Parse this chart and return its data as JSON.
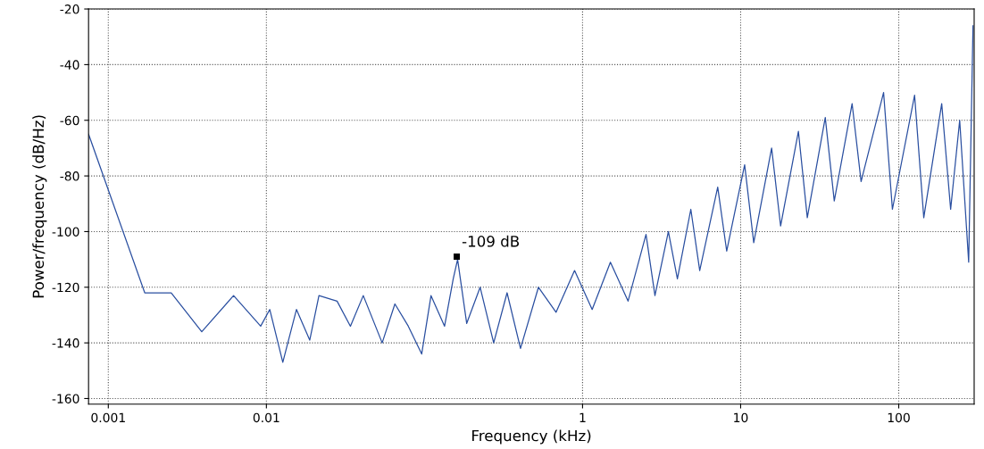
{
  "chart_data": {
    "type": "line",
    "xlabel": "Frequency (kHz)",
    "ylabel": "Power/frequency (dB/Hz)",
    "log": "x",
    "grid": true,
    "legend": false,
    "marker": "none",
    "line_style": "solid",
    "xlim": [
      0.00075,
      300
    ],
    "xticks": [
      0.001,
      0.01,
      1,
      10,
      100
    ],
    "ylim": [
      -162,
      -20
    ],
    "yticks": [
      -20,
      -40,
      -60,
      -80,
      -100,
      -120,
      -140,
      -160
    ],
    "annotations": [
      {
        "text": "-109 dB",
        "x": 0.16,
        "y": -109
      }
    ],
    "series": [
      {
        "color": "#2a4fa0",
        "x": [
          0.00075,
          0.0017,
          0.0025,
          0.0039,
          0.0062,
          0.0092,
          0.0105,
          0.0127,
          0.0155,
          0.0188,
          0.0215,
          0.028,
          0.034,
          0.041,
          0.054,
          0.065,
          0.079,
          0.096,
          0.11,
          0.134,
          0.152,
          0.162,
          0.185,
          0.225,
          0.274,
          0.333,
          0.405,
          0.526,
          0.68,
          0.89,
          1.15,
          1.5,
          1.94,
          2.52,
          2.87,
          3.49,
          3.98,
          4.84,
          5.51,
          7.16,
          8.16,
          10.6,
          12.1,
          15.7,
          17.9,
          23.2,
          26.4,
          34.3,
          39.1,
          50.7,
          57.8,
          80.2,
          91.2,
          126,
          144,
          187,
          213,
          243,
          277,
          295
        ],
        "values": [
          -65,
          -122,
          -122,
          -136,
          -123,
          -134,
          -128,
          -147,
          -128,
          -139,
          -123,
          -125,
          -134,
          -123,
          -140,
          -126,
          -134,
          -144,
          -123,
          -134,
          -117,
          -110,
          -133,
          -120,
          -140,
          -122,
          -142,
          -120,
          -129,
          -114,
          -128,
          -111,
          -125,
          -101,
          -123,
          -100,
          -117,
          -92,
          -114,
          -84,
          -107,
          -76,
          -104,
          -70,
          -98,
          -64,
          -95,
          -59,
          -89,
          -54,
          -82,
          -50,
          -92,
          -51,
          -95,
          -54,
          -92,
          -60,
          -111,
          -26
        ]
      }
    ]
  }
}
